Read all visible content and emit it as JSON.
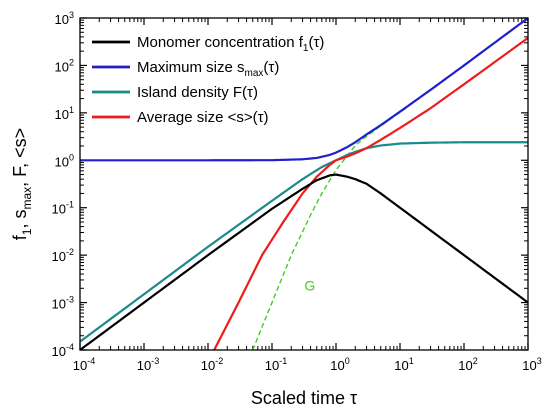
{
  "chart_data": {
    "type": "line",
    "xscale": "log",
    "yscale": "log",
    "xlim": [
      0.0001,
      1000
    ],
    "ylim": [
      0.0001,
      1000
    ],
    "xlabel": "Scaled time τ",
    "ylabel": "f1, smax, F, <s>",
    "xticks": [
      "10-4",
      "10-3",
      "10-2",
      "10-1",
      "100",
      "101",
      "102",
      "103"
    ],
    "yticks": [
      "10-4",
      "10-3",
      "10-2",
      "10-1",
      "100",
      "101",
      "102",
      "103"
    ],
    "grid": false,
    "legend_position": "top-left",
    "series": [
      {
        "name": "Monomer concentration f1(τ)",
        "color": "#000000",
        "points": [
          [
            0.0001,
            0.0001
          ],
          [
            0.001,
            0.001
          ],
          [
            0.01,
            0.01
          ],
          [
            0.1,
            0.095
          ],
          [
            0.3,
            0.25
          ],
          [
            0.5,
            0.38
          ],
          [
            0.8,
            0.48
          ],
          [
            1.0,
            0.5
          ],
          [
            1.5,
            0.45
          ],
          [
            2,
            0.4
          ],
          [
            3,
            0.32
          ],
          [
            5,
            0.2
          ],
          [
            10,
            0.1
          ],
          [
            100,
            0.01
          ],
          [
            1000,
            0.001
          ]
        ]
      },
      {
        "name": "Maximum size smax(τ)",
        "color": "#1f1fcc",
        "points": [
          [
            0.0001,
            1
          ],
          [
            0.01,
            1
          ],
          [
            0.1,
            1.005
          ],
          [
            0.3,
            1.05
          ],
          [
            0.5,
            1.12
          ],
          [
            0.8,
            1.3
          ],
          [
            1.0,
            1.45
          ],
          [
            1.5,
            1.9
          ],
          [
            2,
            2.4
          ],
          [
            3,
            3.5
          ],
          [
            5,
            5.5
          ],
          [
            10,
            10.6
          ],
          [
            30,
            30.5
          ],
          [
            100,
            100
          ],
          [
            1000,
            1000
          ]
        ]
      },
      {
        "name": "Island density F(τ)",
        "color": "#1a8a8a",
        "points": [
          [
            0.0001,
            0.00015
          ],
          [
            0.001,
            0.0015
          ],
          [
            0.01,
            0.015
          ],
          [
            0.1,
            0.14
          ],
          [
            0.3,
            0.4
          ],
          [
            0.6,
            0.72
          ],
          [
            1.0,
            1.0
          ],
          [
            1.5,
            1.3
          ],
          [
            2,
            1.5
          ],
          [
            3,
            1.8
          ],
          [
            5,
            2.05
          ],
          [
            10,
            2.25
          ],
          [
            30,
            2.35
          ],
          [
            100,
            2.4
          ],
          [
            1000,
            2.4
          ]
        ]
      },
      {
        "name": "Average size <s>(τ)",
        "color": "#ee1c1c",
        "points": [
          [
            0.0125,
            0.0001
          ],
          [
            0.03,
            0.001
          ],
          [
            0.07,
            0.01
          ],
          [
            0.15,
            0.05
          ],
          [
            0.3,
            0.2
          ],
          [
            0.5,
            0.45
          ],
          [
            0.8,
            0.8
          ],
          [
            1.0,
            1.0
          ],
          [
            1.5,
            1.2
          ],
          [
            2,
            1.4
          ],
          [
            3,
            1.8
          ],
          [
            5,
            2.7
          ],
          [
            10,
            4.8
          ],
          [
            30,
            12.5
          ],
          [
            100,
            40
          ],
          [
            1000,
            380
          ]
        ]
      },
      {
        "name": "G",
        "color": "#44cc22",
        "dashed": true,
        "points": [
          [
            0.05,
            0.0001
          ],
          [
            0.1,
            0.001
          ],
          [
            0.2,
            0.01
          ],
          [
            0.4,
            0.07
          ],
          [
            0.6,
            0.2
          ],
          [
            1.0,
            0.62
          ],
          [
            2,
            2.05
          ],
          [
            3,
            3.2
          ],
          [
            5,
            5.3
          ],
          [
            10,
            10.2
          ],
          [
            100,
            100
          ],
          [
            1000,
            1000
          ]
        ]
      }
    ]
  }
}
